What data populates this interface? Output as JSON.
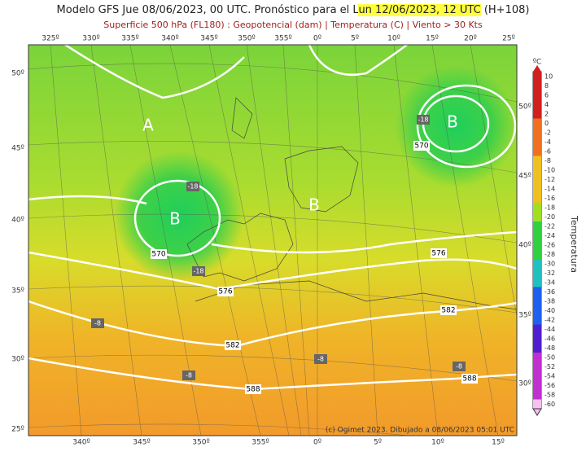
{
  "header": {
    "title_parts": [
      "Modelo GFS Jue 08/06/2023, 00 UTC. Pronóstico para el L",
      "un 12/06/2023, 12 UTC",
      "(H+108)"
    ],
    "subtitle": "Superficie 500 hPa (FL180) : Geopotencial (dam) | Temperatura (C) | Viento > 30 Kts"
  },
  "map": {
    "top_lon_labels": [
      "325º",
      "330º",
      "335º",
      "340º",
      "345º",
      "350º",
      "355º",
      "0º",
      "5º",
      "10º",
      "15º",
      "20º",
      "25º"
    ],
    "bottom_lon_labels": [
      "340º",
      "345º",
      "350º",
      "355º",
      "0º",
      "5º",
      "10º",
      "15º"
    ],
    "left_lat_labels": [
      "50º",
      "45º",
      "40º",
      "35º",
      "30º",
      "25º"
    ],
    "right_lat_labels": [
      "50º",
      "45º",
      "40º",
      "35º",
      "30º"
    ],
    "pressure_labels": [
      "A",
      "B",
      "B",
      "B"
    ],
    "contour_labels": [
      "570",
      "576",
      "582",
      "588",
      "570",
      "576",
      "582",
      "588"
    ],
    "temperature_labels": [
      "-18",
      "-18",
      "-18",
      "-8",
      "-8",
      "-8",
      "-8"
    ],
    "credit": "(c) Ogimet 2023. Dibujado a 08/06/2023 05:01 UTC"
  },
  "colorbar": {
    "unit": "ºC",
    "title": "Temperatura",
    "labels": [
      10,
      8,
      6,
      4,
      2,
      0,
      -2,
      -4,
      -6,
      -8,
      -10,
      -12,
      -14,
      -16,
      -18,
      -20,
      -22,
      -24,
      -26,
      -28,
      -30,
      -32,
      -34,
      -36,
      -38,
      -40,
      -42,
      -44,
      -46,
      -48,
      -50,
      -52,
      -54,
      -56,
      -58,
      -60
    ]
  }
}
